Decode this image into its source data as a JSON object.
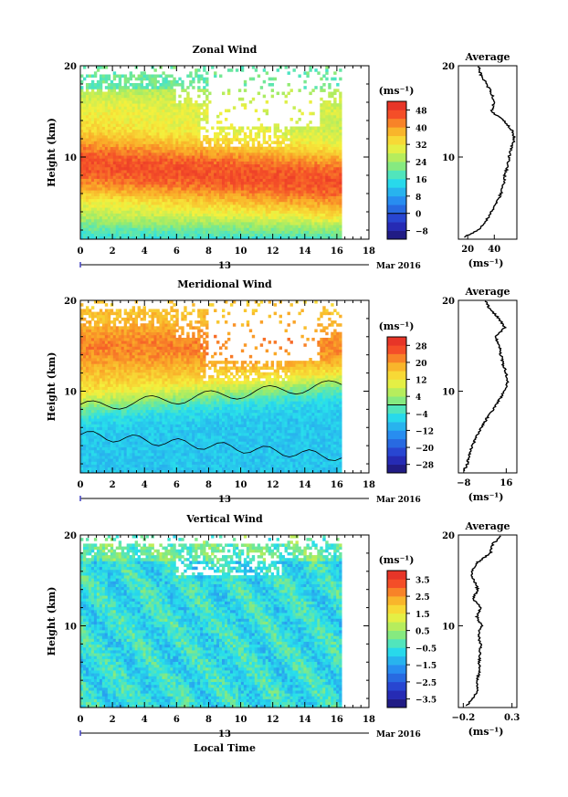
{
  "x_axis": {
    "ticks": [
      0,
      2,
      4,
      6,
      8,
      10,
      12,
      14,
      16,
      18
    ],
    "range": [
      0,
      18
    ],
    "day_label": "13",
    "month_label": "Mar 2016",
    "xlabel": "Local Time"
  },
  "chart_data": [
    {
      "type": "heatmap",
      "title": "Zonal Wind",
      "ylabel": "Height (km)",
      "y_ticks": [
        10,
        20
      ],
      "ylim": [
        1,
        20
      ],
      "x_data_range": [
        0,
        16.3
      ],
      "unit_label": "(ms⁻¹)",
      "colorbar": {
        "labels": [
          -8,
          0,
          8,
          16,
          24,
          32,
          40,
          48
        ],
        "min": -12,
        "max": 52,
        "zero_line": 0
      },
      "contour_level": 0,
      "average_profile": {
        "title": "Average",
        "x_ticks": [
          20,
          40
        ],
        "xlim": [
          13,
          57
        ],
        "y_ticks": [
          10,
          20
        ],
        "xlabel": "(ms⁻¹)",
        "height_km": [
          1.2,
          2,
          3,
          4,
          5,
          6,
          7,
          8,
          9,
          10,
          11,
          12,
          13,
          14,
          15,
          16,
          17,
          18,
          19,
          20
        ],
        "value": [
          17,
          28,
          34,
          38,
          42,
          45,
          47,
          48,
          50,
          51,
          53,
          55,
          53,
          47,
          38,
          40,
          38,
          34,
          30,
          28
        ]
      }
    },
    {
      "type": "heatmap",
      "title": "Meridional Wind",
      "ylabel": "Height (km)",
      "y_ticks": [
        10,
        20
      ],
      "ylim": [
        1,
        20
      ],
      "x_data_range": [
        0,
        16.3
      ],
      "unit_label": "(ms⁻¹)",
      "colorbar": {
        "labels": [
          -28,
          -20,
          -12,
          -4,
          4,
          12,
          20,
          28
        ],
        "min": -32,
        "max": 32,
        "zero_line": 0
      },
      "contour_level": 0,
      "average_profile": {
        "title": "Average",
        "x_ticks": [
          -8,
          16
        ],
        "xlim": [
          -11,
          22
        ],
        "y_ticks": [
          10,
          20
        ],
        "xlabel": "(ms⁻¹)",
        "height_km": [
          1.2,
          2,
          3,
          4,
          5,
          6,
          7,
          8,
          9,
          10,
          11,
          12,
          13,
          14,
          15,
          16,
          17,
          18,
          19,
          20
        ],
        "value": [
          -8,
          -6,
          -5,
          -3,
          -1,
          2,
          5,
          9,
          12,
          15,
          17,
          16,
          14,
          13,
          12,
          10,
          15,
          12,
          7,
          4
        ]
      }
    },
    {
      "type": "heatmap",
      "title": "Vertical Wind",
      "ylabel": "Height (km)",
      "y_ticks": [
        10,
        20
      ],
      "ylim": [
        1,
        20
      ],
      "x_data_range": [
        0,
        16.3
      ],
      "unit_label": "(ms⁻¹)",
      "colorbar": {
        "labels": [
          -3.5,
          -2.5,
          -1.5,
          -0.5,
          0.5,
          1.5,
          2.5,
          3.5
        ],
        "min": -4,
        "max": 4,
        "zero_line": null
      },
      "contour_level": null,
      "average_profile": {
        "title": "Average",
        "x_ticks": [
          -0.2,
          0.3
        ],
        "xlim": [
          -0.25,
          0.35
        ],
        "y_ticks": [
          10,
          20
        ],
        "xlabel": "(ms⁻¹)",
        "height_km": [
          1.2,
          2,
          3,
          4,
          5,
          6,
          7,
          8,
          9,
          10,
          11,
          12,
          13,
          14,
          15,
          16,
          17,
          18,
          19,
          20
        ],
        "value": [
          -0.17,
          -0.1,
          -0.05,
          -0.06,
          -0.03,
          -0.04,
          -0.03,
          -0.02,
          -0.05,
          -0.01,
          -0.06,
          -0.02,
          -0.1,
          -0.05,
          -0.09,
          -0.12,
          -0.05,
          0.08,
          0.1,
          0.2
        ]
      }
    }
  ]
}
